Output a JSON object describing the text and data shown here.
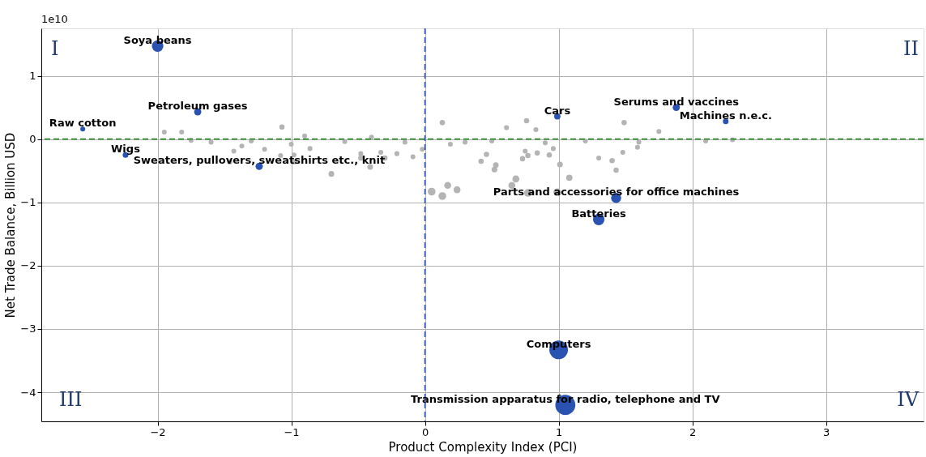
{
  "chart_data": {
    "type": "bubble",
    "xlabel": "Product Complexity Index (PCI)",
    "ylabel": "Net Trade Balance, Billion USD",
    "xlim": [
      -2.87,
      3.73
    ],
    "ylim": [
      -4.46,
      1.75
    ],
    "xticks": [
      -2,
      -1,
      0,
      1,
      2,
      3
    ],
    "yticks": [
      -4,
      -3,
      -2,
      -1,
      0,
      1
    ],
    "grid": true,
    "legend": false,
    "marker": "circle",
    "series": [
      {
        "color": "#b4b4b4",
        "x": [
          0.13,
          0.76,
          0.61,
          0.83,
          1.49,
          1.75,
          0.46,
          0.42,
          0.53,
          0.52,
          0.73,
          0.77,
          0.84,
          0.93,
          1.01,
          1.08,
          0.65,
          0.68,
          0.77,
          0.99,
          0.05,
          0.13,
          0.17,
          0.24,
          1.3,
          1.4,
          1.43,
          1.48,
          1.59,
          0.96,
          0.75,
          0.19,
          0.3,
          0.5,
          0.9,
          1.2,
          1.6,
          2.1,
          2.3,
          -1.07,
          -1.95,
          -1.82,
          -1.43,
          -1.46,
          -1.2,
          -1.08,
          -0.98,
          -0.98,
          -0.86,
          -0.7,
          -0.48,
          -0.48,
          -0.33,
          -0.3,
          -0.21,
          -0.09,
          -0.02,
          -0.41,
          -1.37,
          -1.6,
          -1.3,
          -0.9,
          -0.6,
          -0.4,
          -0.15,
          -1.75,
          -1.0
        ],
        "values": [
          0.26,
          0.29,
          0.18,
          0.15,
          0.26,
          0.12,
          -0.24,
          -0.35,
          -0.41,
          -0.48,
          -0.31,
          -0.26,
          -0.22,
          -0.25,
          -0.4,
          -0.61,
          -0.73,
          -0.63,
          -0.85,
          -0.84,
          -0.83,
          -0.9,
          -0.73,
          -0.8,
          -0.3,
          -0.34,
          -0.49,
          -0.21,
          -0.13,
          -0.15,
          -0.19,
          -0.08,
          -0.05,
          -0.03,
          -0.06,
          -0.03,
          -0.05,
          -0.03,
          -0.01,
          0.19,
          0.11,
          0.11,
          -0.19,
          -0.36,
          -0.16,
          -0.26,
          -0.25,
          -0.36,
          -0.15,
          -0.55,
          -0.23,
          -0.3,
          -0.21,
          -0.3,
          -0.23,
          -0.28,
          -0.16,
          -0.44,
          -0.11,
          -0.05,
          -0.03,
          0.05,
          -0.04,
          0.03,
          -0.05,
          -0.02,
          -0.08
        ],
        "sizes": [
          0.07,
          0.07,
          0.06,
          0.06,
          0.07,
          0.06,
          0.07,
          0.07,
          0.08,
          0.08,
          0.07,
          0.07,
          0.07,
          0.07,
          0.08,
          0.1,
          0.12,
          0.12,
          0.15,
          0.15,
          0.15,
          0.15,
          0.12,
          0.12,
          0.06,
          0.07,
          0.07,
          0.06,
          0.06,
          0.06,
          0.06,
          0.06,
          0.06,
          0.06,
          0.06,
          0.06,
          0.06,
          0.06,
          0.06,
          0.07,
          0.06,
          0.06,
          0.06,
          0.07,
          0.06,
          0.06,
          0.06,
          0.07,
          0.06,
          0.08,
          0.06,
          0.07,
          0.06,
          0.07,
          0.06,
          0.06,
          0.06,
          0.08,
          0.06,
          0.06,
          0.06,
          0.06,
          0.06,
          0.06,
          0.06,
          0.06,
          0.06
        ]
      },
      {
        "color": "#2a52b0",
        "x": [
          -2.0,
          -1.7,
          -2.56,
          -2.24,
          -1.24,
          0.99,
          1.88,
          2.25,
          1.43,
          1.3,
          1.0,
          1.05
        ],
        "values": [
          1.47,
          0.43,
          0.16,
          -0.25,
          -0.43,
          0.36,
          0.5,
          0.28,
          -0.93,
          -1.27,
          -3.33,
          -4.2
        ],
        "sizes": [
          0.33,
          0.13,
          0.06,
          0.08,
          0.13,
          0.1,
          0.13,
          0.08,
          0.25,
          0.33,
          0.86,
          1
        ]
      }
    ],
    "ref_lines": [
      {
        "axis": "x",
        "value": 0,
        "color": "#2a52cc",
        "line_style": "dashed"
      },
      {
        "axis": "y",
        "value": 0,
        "color": "#2e8b2e",
        "line_style": "dashed"
      }
    ],
    "annotations": [
      {
        "text": "Soya beans",
        "x": -2.0,
        "y": 1.47
      },
      {
        "text": "Petroleum gases",
        "x": -1.7,
        "y": 0.43
      },
      {
        "text": "Raw cotton",
        "x": -2.56,
        "y": 0.16
      },
      {
        "text": "Wigs",
        "x": -2.24,
        "y": -0.25
      },
      {
        "text": "Sweaters, pullovers, sweatshirts etc., knit",
        "x": -1.24,
        "y": -0.43
      },
      {
        "text": "Cars",
        "x": 0.99,
        "y": 0.36
      },
      {
        "text": "Serums and vaccines",
        "x": 1.88,
        "y": 0.5
      },
      {
        "text": "Machines n.e.c.",
        "x": 2.25,
        "y": 0.28
      },
      {
        "text": "Parts and accessories for office machines",
        "x": 1.43,
        "y": -0.93
      },
      {
        "text": "Batteries",
        "x": 1.3,
        "y": -1.27
      },
      {
        "text": "Computers",
        "x": 1.0,
        "y": -3.33
      },
      {
        "text": "Transmission apparatus for radio, telephone and TV",
        "x": 1.05,
        "y": -4.2
      },
      "I",
      "II",
      "III",
      "IV",
      "1e10"
    ]
  }
}
